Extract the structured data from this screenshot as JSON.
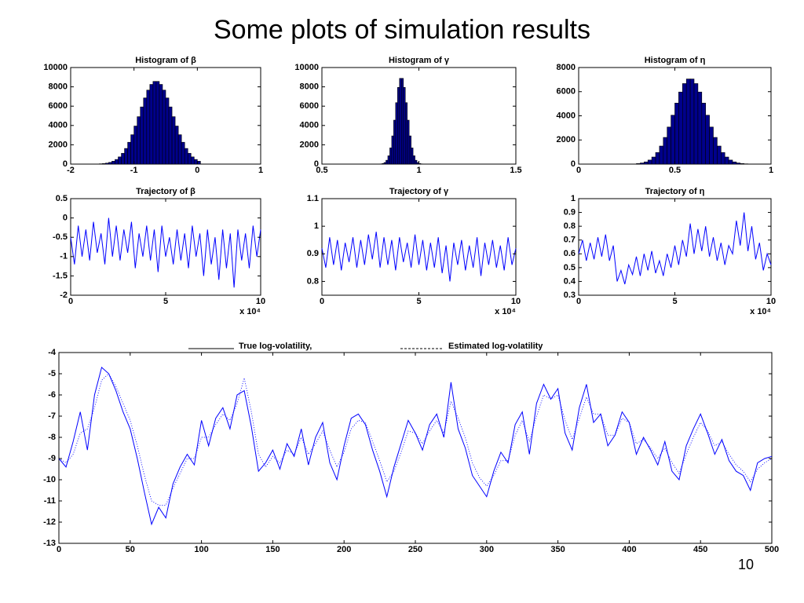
{
  "title": "Some plots of simulation results",
  "page_number": "10",
  "chart_data": [
    {
      "type": "histogram",
      "title": "Histogram of β",
      "color": "#00008b",
      "bins": [
        -1.6,
        -1.55,
        -1.5,
        -1.45,
        -1.4,
        -1.35,
        -1.3,
        -1.25,
        -1.2,
        -1.15,
        -1.1,
        -1.05,
        -1.0,
        -0.95,
        -0.9,
        -0.85,
        -0.8,
        -0.75,
        -0.7,
        -0.65,
        -0.6,
        -0.55,
        -0.5,
        -0.45,
        -0.4,
        -0.35,
        -0.3,
        -0.25,
        -0.2,
        -0.15,
        -0.1,
        -0.05,
        0.0,
        0.05
      ],
      "counts": [
        15,
        30,
        56,
        101,
        176,
        295,
        478,
        745,
        1118,
        1620,
        2260,
        3040,
        3940,
        4910,
        5920,
        6850,
        7660,
        8250,
        8560,
        8560,
        8250,
        7660,
        6850,
        5920,
        4910,
        3940,
        3040,
        2260,
        1620,
        1118,
        745,
        478,
        295
      ],
      "xlim": [
        -2,
        1
      ],
      "xticks": [
        -2,
        -1,
        0,
        1
      ],
      "ylim": [
        0,
        10000
      ],
      "yticks": [
        0,
        2000,
        4000,
        6000,
        8000,
        10000
      ]
    },
    {
      "type": "histogram",
      "title": "Histogram of γ",
      "color": "#00008b",
      "bins": [
        0.8,
        0.81,
        0.82,
        0.83,
        0.84,
        0.85,
        0.86,
        0.87,
        0.88,
        0.89,
        0.9,
        0.91,
        0.92,
        0.93,
        0.94,
        0.95,
        0.96,
        0.97,
        0.98,
        0.99,
        1.0,
        1.01,
        1.02
      ],
      "counts": [
        20,
        60,
        162,
        395,
        860,
        1675,
        2920,
        4550,
        6360,
        7940,
        8875,
        8875,
        7940,
        6360,
        4550,
        2920,
        1675,
        860,
        395,
        162,
        60,
        20
      ],
      "xlim": [
        0.5,
        1.5
      ],
      "xticks": [
        0.5,
        1,
        1.5
      ],
      "ylim": [
        0,
        10000
      ],
      "yticks": [
        0,
        2000,
        4000,
        6000,
        8000,
        10000
      ]
    },
    {
      "type": "histogram",
      "title": "Histogram of η",
      "color": "#00008b",
      "bins": [
        0.3,
        0.32,
        0.34,
        0.36,
        0.38,
        0.4,
        0.42,
        0.44,
        0.46,
        0.48,
        0.5,
        0.52,
        0.54,
        0.56,
        0.58,
        0.6,
        0.62,
        0.64,
        0.66,
        0.68,
        0.7,
        0.72,
        0.74,
        0.76,
        0.78,
        0.8,
        0.82,
        0.84,
        0.86,
        0.88,
        0.9,
        0.92,
        0.94,
        0.96
      ],
      "counts": [
        45,
        94,
        181,
        334,
        585,
        960,
        1495,
        2210,
        3070,
        4050,
        5055,
        5970,
        6670,
        7050,
        7050,
        6670,
        5970,
        5055,
        4050,
        3070,
        2210,
        1495,
        960,
        585,
        334,
        181,
        94,
        45,
        21,
        9,
        5,
        2,
        1
      ],
      "xlim": [
        0,
        1
      ],
      "xticks": [
        0,
        0.5,
        1
      ],
      "ylim": [
        0,
        8000
      ],
      "yticks": [
        0,
        2000,
        4000,
        6000,
        8000
      ]
    },
    {
      "type": "line",
      "title": "Trajectory of β",
      "color": "#0000ff",
      "x_scale_label": "x 10⁴",
      "x": [
        0,
        0.2,
        0.4,
        0.6,
        0.8,
        1,
        1.2,
        1.4,
        1.6,
        1.8,
        2,
        2.2,
        2.4,
        2.6,
        2.8,
        3,
        3.2,
        3.4,
        3.6,
        3.8,
        4,
        4.2,
        4.4,
        4.6,
        4.8,
        5,
        5.2,
        5.4,
        5.6,
        5.8,
        6,
        6.2,
        6.4,
        6.6,
        6.8,
        7,
        7.2,
        7.4,
        7.6,
        7.8,
        8,
        8.2,
        8.4,
        8.6,
        8.8,
        9,
        9.2,
        9.4,
        9.6,
        9.8,
        10
      ],
      "values": [
        -0.5,
        -1.2,
        -0.2,
        -1.0,
        -0.3,
        -1.1,
        -0.1,
        -0.9,
        -0.4,
        -1.2,
        0.0,
        -1.0,
        -0.2,
        -1.1,
        -0.3,
        -0.9,
        -0.1,
        -1.3,
        -0.4,
        -1.0,
        -0.2,
        -1.1,
        -0.3,
        -1.4,
        -0.2,
        -1.0,
        -0.5,
        -1.2,
        -0.3,
        -1.1,
        -0.4,
        -1.3,
        -0.2,
        -1.0,
        -0.4,
        -1.5,
        -0.3,
        -1.2,
        -0.5,
        -1.6,
        -0.3,
        -1.3,
        -0.4,
        -1.8,
        -0.3,
        -1.1,
        -0.4,
        -1.3,
        -0.2,
        -1.0,
        -0.3
      ],
      "xlim": [
        0,
        10
      ],
      "xticks": [
        0,
        5,
        10
      ],
      "ylim": [
        -2,
        0.5
      ],
      "yticks": [
        -2,
        -1.5,
        -1,
        -0.5,
        0,
        0.5
      ]
    },
    {
      "type": "line",
      "title": "Trajectory of γ",
      "color": "#0000ff",
      "x_scale_label": "x 10⁴",
      "x": [
        0,
        0.2,
        0.4,
        0.6,
        0.8,
        1,
        1.2,
        1.4,
        1.6,
        1.8,
        2,
        2.2,
        2.4,
        2.6,
        2.8,
        3,
        3.2,
        3.4,
        3.6,
        3.8,
        4,
        4.2,
        4.4,
        4.6,
        4.8,
        5,
        5.2,
        5.4,
        5.6,
        5.8,
        6,
        6.2,
        6.4,
        6.6,
        6.8,
        7,
        7.2,
        7.4,
        7.6,
        7.8,
        8,
        8.2,
        8.4,
        8.6,
        8.8,
        9,
        9.2,
        9.4,
        9.6,
        9.8,
        10
      ],
      "values": [
        0.92,
        0.85,
        0.96,
        0.86,
        0.95,
        0.84,
        0.94,
        0.87,
        0.96,
        0.85,
        0.95,
        0.86,
        0.97,
        0.88,
        0.98,
        0.85,
        0.96,
        0.86,
        0.95,
        0.84,
        0.96,
        0.87,
        0.94,
        0.85,
        0.97,
        0.86,
        0.95,
        0.84,
        0.94,
        0.85,
        0.96,
        0.83,
        0.93,
        0.8,
        0.94,
        0.86,
        0.95,
        0.84,
        0.93,
        0.85,
        0.96,
        0.82,
        0.94,
        0.86,
        0.95,
        0.85,
        0.93,
        0.84,
        0.96,
        0.86,
        0.92
      ],
      "xlim": [
        0,
        10
      ],
      "xticks": [
        0,
        5,
        10
      ],
      "ylim": [
        0.75,
        1.1
      ],
      "yticks": [
        0.8,
        0.9,
        1,
        1.1
      ]
    },
    {
      "type": "line",
      "title": "Trajectory of η",
      "color": "#0000ff",
      "x_scale_label": "x 10⁴",
      "x": [
        0,
        0.2,
        0.4,
        0.6,
        0.8,
        1,
        1.2,
        1.4,
        1.6,
        1.8,
        2,
        2.2,
        2.4,
        2.6,
        2.8,
        3,
        3.2,
        3.4,
        3.6,
        3.8,
        4,
        4.2,
        4.4,
        4.6,
        4.8,
        5,
        5.2,
        5.4,
        5.6,
        5.8,
        6,
        6.2,
        6.4,
        6.6,
        6.8,
        7,
        7.2,
        7.4,
        7.6,
        7.8,
        8,
        8.2,
        8.4,
        8.6,
        8.8,
        9,
        9.2,
        9.4,
        9.6,
        9.8,
        10
      ],
      "values": [
        0.6,
        0.7,
        0.55,
        0.68,
        0.56,
        0.72,
        0.58,
        0.74,
        0.55,
        0.66,
        0.4,
        0.48,
        0.38,
        0.52,
        0.45,
        0.58,
        0.44,
        0.6,
        0.48,
        0.62,
        0.46,
        0.55,
        0.44,
        0.6,
        0.5,
        0.66,
        0.52,
        0.7,
        0.58,
        0.82,
        0.6,
        0.78,
        0.62,
        0.8,
        0.58,
        0.72,
        0.55,
        0.68,
        0.52,
        0.66,
        0.6,
        0.84,
        0.66,
        0.9,
        0.62,
        0.8,
        0.56,
        0.68,
        0.48,
        0.6,
        0.52
      ],
      "xlim": [
        0,
        10
      ],
      "xticks": [
        0,
        5,
        10
      ],
      "ylim": [
        0.3,
        1
      ],
      "yticks": [
        0.3,
        0.4,
        0.5,
        0.6,
        0.7,
        0.8,
        0.9,
        1
      ]
    },
    {
      "type": "line",
      "x": [
        0,
        5,
        10,
        15,
        20,
        25,
        30,
        35,
        40,
        45,
        50,
        55,
        60,
        65,
        70,
        75,
        80,
        85,
        90,
        95,
        100,
        105,
        110,
        115,
        120,
        125,
        130,
        135,
        140,
        145,
        150,
        155,
        160,
        165,
        170,
        175,
        180,
        185,
        190,
        195,
        200,
        205,
        210,
        215,
        220,
        225,
        230,
        235,
        240,
        245,
        250,
        255,
        260,
        265,
        270,
        275,
        280,
        285,
        290,
        295,
        300,
        305,
        310,
        315,
        320,
        325,
        330,
        335,
        340,
        345,
        350,
        355,
        360,
        365,
        370,
        375,
        380,
        385,
        390,
        395,
        400,
        405,
        410,
        415,
        420,
        425,
        430,
        435,
        440,
        445,
        450,
        455,
        460,
        465,
        470,
        475,
        480,
        485,
        490,
        495,
        500
      ],
      "series": [
        {
          "name": "True log-volatility,",
          "color": "#0000ff",
          "line_style": "solid",
          "values": [
            -9.0,
            -9.4,
            -8.2,
            -6.8,
            -8.6,
            -6.0,
            -4.7,
            -5.0,
            -5.8,
            -6.8,
            -7.6,
            -9.0,
            -10.6,
            -12.1,
            -11.3,
            -11.8,
            -10.2,
            -9.4,
            -8.8,
            -9.3,
            -7.2,
            -8.4,
            -7.1,
            -6.6,
            -7.6,
            -6.0,
            -5.8,
            -7.5,
            -9.6,
            -9.2,
            -8.6,
            -9.5,
            -8.3,
            -8.9,
            -7.6,
            -9.3,
            -8.0,
            -7.3,
            -9.2,
            -10.0,
            -8.4,
            -7.1,
            -6.9,
            -7.4,
            -8.6,
            -9.6,
            -10.8,
            -9.4,
            -8.3,
            -7.2,
            -7.8,
            -8.6,
            -7.4,
            -6.9,
            -8.0,
            -5.4,
            -7.6,
            -8.5,
            -9.8,
            -10.3,
            -10.8,
            -9.6,
            -8.7,
            -9.2,
            -7.4,
            -6.8,
            -8.8,
            -6.4,
            -5.5,
            -6.2,
            -5.7,
            -7.8,
            -8.6,
            -6.6,
            -5.5,
            -7.3,
            -6.9,
            -8.4,
            -7.9,
            -6.8,
            -7.3,
            -8.8,
            -8.0,
            -8.6,
            -9.3,
            -8.2,
            -9.6,
            -10.0,
            -8.4,
            -7.6,
            -6.9,
            -7.8,
            -8.8,
            -8.1,
            -9.1,
            -9.6,
            -9.8,
            -10.5,
            -9.2,
            -9.0,
            -8.9
          ]
        },
        {
          "name": "Estimated log-volatility",
          "color": "#0000ff",
          "line_style": "dotted",
          "values": [
            -9.0,
            -9.2,
            -8.8,
            -7.8,
            -7.6,
            -6.6,
            -5.3,
            -5.0,
            -5.6,
            -6.4,
            -7.2,
            -8.4,
            -9.8,
            -11.0,
            -11.2,
            -11.2,
            -10.4,
            -9.7,
            -9.0,
            -9.0,
            -8.0,
            -8.0,
            -7.4,
            -6.9,
            -7.2,
            -6.4,
            -5.2,
            -6.8,
            -8.8,
            -9.4,
            -8.9,
            -9.2,
            -8.6,
            -8.8,
            -8.0,
            -8.8,
            -8.3,
            -7.7,
            -8.6,
            -9.4,
            -8.7,
            -7.6,
            -7.2,
            -7.3,
            -8.2,
            -9.1,
            -10.1,
            -9.6,
            -8.7,
            -7.7,
            -7.8,
            -8.3,
            -7.7,
            -7.2,
            -7.8,
            -6.3,
            -7.1,
            -8.0,
            -9.2,
            -9.9,
            -10.3,
            -9.8,
            -9.1,
            -9.1,
            -7.9,
            -7.2,
            -8.2,
            -7.0,
            -6.0,
            -6.2,
            -6.0,
            -7.2,
            -8.1,
            -7.1,
            -6.1,
            -6.9,
            -6.9,
            -7.9,
            -7.9,
            -7.1,
            -7.3,
            -8.3,
            -8.1,
            -8.5,
            -9.0,
            -8.5,
            -9.2,
            -9.7,
            -8.8,
            -8.0,
            -7.3,
            -7.7,
            -8.4,
            -8.2,
            -8.8,
            -9.3,
            -9.6,
            -10.1,
            -9.5,
            -9.2,
            -9.0
          ]
        }
      ],
      "xlim": [
        0,
        500
      ],
      "xticks": [
        0,
        50,
        100,
        150,
        200,
        250,
        300,
        350,
        400,
        450,
        500
      ],
      "ylim": [
        -13,
        -4
      ],
      "yticks": [
        -13,
        -12,
        -11,
        -10,
        -9,
        -8,
        -7,
        -6,
        -5,
        -4
      ]
    }
  ]
}
